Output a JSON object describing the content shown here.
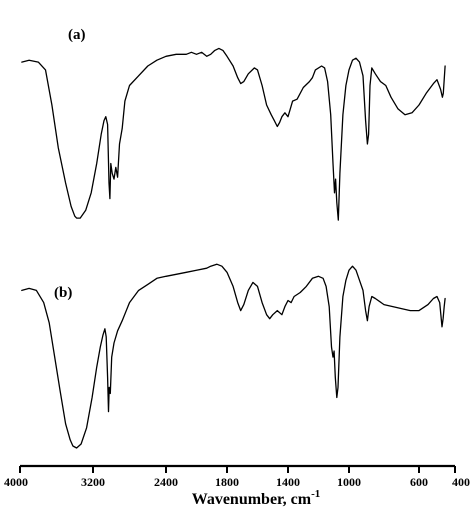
{
  "chart_data": {
    "type": "line",
    "x_reversed": true,
    "xlim": [
      4000,
      400
    ],
    "xlabel": "Wavenumber, cm",
    "xlabel_superscript": "-1",
    "x_ticks": [
      4000,
      3200,
      2400,
      1800,
      1400,
      1000,
      600,
      400
    ],
    "y_axis_shown": false,
    "grid": false,
    "series": [
      {
        "name": "(a)",
        "points": [
          [
            3980,
            0.82
          ],
          [
            3900,
            0.83
          ],
          [
            3800,
            0.82
          ],
          [
            3720,
            0.78
          ],
          [
            3650,
            0.6
          ],
          [
            3580,
            0.38
          ],
          [
            3500,
            0.2
          ],
          [
            3440,
            0.08
          ],
          [
            3400,
            0.03
          ],
          [
            3380,
            0.02
          ],
          [
            3340,
            0.02
          ],
          [
            3280,
            0.06
          ],
          [
            3220,
            0.15
          ],
          [
            3160,
            0.3
          ],
          [
            3110,
            0.45
          ],
          [
            3080,
            0.52
          ],
          [
            3060,
            0.54
          ],
          [
            3040,
            0.5
          ],
          [
            3025,
            0.2
          ],
          [
            3015,
            0.12
          ],
          [
            3005,
            0.3
          ],
          [
            2990,
            0.25
          ],
          [
            2970,
            0.22
          ],
          [
            2950,
            0.28
          ],
          [
            2930,
            0.23
          ],
          [
            2910,
            0.4
          ],
          [
            2880,
            0.48
          ],
          [
            2850,
            0.62
          ],
          [
            2800,
            0.7
          ],
          [
            2700,
            0.75
          ],
          [
            2600,
            0.8
          ],
          [
            2500,
            0.83
          ],
          [
            2400,
            0.85
          ],
          [
            2300,
            0.86
          ],
          [
            2200,
            0.86
          ],
          [
            2150,
            0.87
          ],
          [
            2100,
            0.86
          ],
          [
            2050,
            0.87
          ],
          [
            2000,
            0.85
          ],
          [
            1960,
            0.86
          ],
          [
            1920,
            0.88
          ],
          [
            1880,
            0.89
          ],
          [
            1840,
            0.88
          ],
          [
            1800,
            0.85
          ],
          [
            1760,
            0.8
          ],
          [
            1730,
            0.74
          ],
          [
            1710,
            0.71
          ],
          [
            1690,
            0.72
          ],
          [
            1660,
            0.76
          ],
          [
            1620,
            0.79
          ],
          [
            1600,
            0.78
          ],
          [
            1570,
            0.7
          ],
          [
            1540,
            0.6
          ],
          [
            1510,
            0.55
          ],
          [
            1490,
            0.52
          ],
          [
            1470,
            0.49
          ],
          [
            1455,
            0.51
          ],
          [
            1440,
            0.54
          ],
          [
            1420,
            0.56
          ],
          [
            1400,
            0.54
          ],
          [
            1385,
            0.58
          ],
          [
            1370,
            0.62
          ],
          [
            1340,
            0.63
          ],
          [
            1300,
            0.69
          ],
          [
            1260,
            0.72
          ],
          [
            1240,
            0.74
          ],
          [
            1220,
            0.78
          ],
          [
            1180,
            0.8
          ],
          [
            1160,
            0.79
          ],
          [
            1140,
            0.72
          ],
          [
            1120,
            0.55
          ],
          [
            1105,
            0.3
          ],
          [
            1095,
            0.15
          ],
          [
            1088,
            0.22
          ],
          [
            1080,
            0.1
          ],
          [
            1070,
            0.01
          ],
          [
            1060,
            0.25
          ],
          [
            1040,
            0.55
          ],
          [
            1020,
            0.7
          ],
          [
            1000,
            0.78
          ],
          [
            980,
            0.83
          ],
          [
            960,
            0.84
          ],
          [
            940,
            0.82
          ],
          [
            920,
            0.75
          ],
          [
            905,
            0.52
          ],
          [
            895,
            0.4
          ],
          [
            888,
            0.45
          ],
          [
            880,
            0.7
          ],
          [
            870,
            0.79
          ],
          [
            850,
            0.76
          ],
          [
            820,
            0.72
          ],
          [
            790,
            0.7
          ],
          [
            760,
            0.64
          ],
          [
            720,
            0.58
          ],
          [
            680,
            0.55
          ],
          [
            640,
            0.56
          ],
          [
            600,
            0.6
          ],
          [
            560,
            0.66
          ],
          [
            520,
            0.71
          ],
          [
            500,
            0.73
          ],
          [
            480,
            0.68
          ],
          [
            470,
            0.64
          ],
          [
            465,
            0.66
          ],
          [
            460,
            0.73
          ],
          [
            455,
            0.8
          ]
        ]
      },
      {
        "name": "(b)",
        "points": [
          [
            3980,
            0.78
          ],
          [
            3900,
            0.79
          ],
          [
            3820,
            0.78
          ],
          [
            3740,
            0.72
          ],
          [
            3680,
            0.62
          ],
          [
            3620,
            0.45
          ],
          [
            3560,
            0.28
          ],
          [
            3500,
            0.12
          ],
          [
            3450,
            0.04
          ],
          [
            3420,
            0.01
          ],
          [
            3380,
            0.0
          ],
          [
            3330,
            0.02
          ],
          [
            3270,
            0.1
          ],
          [
            3210,
            0.25
          ],
          [
            3160,
            0.4
          ],
          [
            3120,
            0.5
          ],
          [
            3090,
            0.56
          ],
          [
            3070,
            0.59
          ],
          [
            3055,
            0.55
          ],
          [
            3040,
            0.35
          ],
          [
            3030,
            0.18
          ],
          [
            3022,
            0.3
          ],
          [
            3010,
            0.27
          ],
          [
            2995,
            0.45
          ],
          [
            2970,
            0.52
          ],
          [
            2930,
            0.58
          ],
          [
            2880,
            0.63
          ],
          [
            2800,
            0.72
          ],
          [
            2700,
            0.78
          ],
          [
            2600,
            0.81
          ],
          [
            2500,
            0.84
          ],
          [
            2400,
            0.85
          ],
          [
            2300,
            0.86
          ],
          [
            2200,
            0.87
          ],
          [
            2100,
            0.88
          ],
          [
            2000,
            0.89
          ],
          [
            1960,
            0.9
          ],
          [
            1900,
            0.91
          ],
          [
            1850,
            0.9
          ],
          [
            1800,
            0.87
          ],
          [
            1760,
            0.8
          ],
          [
            1730,
            0.72
          ],
          [
            1710,
            0.68
          ],
          [
            1690,
            0.71
          ],
          [
            1660,
            0.78
          ],
          [
            1630,
            0.82
          ],
          [
            1600,
            0.8
          ],
          [
            1570,
            0.72
          ],
          [
            1540,
            0.66
          ],
          [
            1520,
            0.64
          ],
          [
            1500,
            0.66
          ],
          [
            1470,
            0.68
          ],
          [
            1440,
            0.66
          ],
          [
            1420,
            0.7
          ],
          [
            1400,
            0.73
          ],
          [
            1380,
            0.72
          ],
          [
            1360,
            0.75
          ],
          [
            1320,
            0.77
          ],
          [
            1280,
            0.8
          ],
          [
            1240,
            0.84
          ],
          [
            1200,
            0.85
          ],
          [
            1170,
            0.84
          ],
          [
            1150,
            0.8
          ],
          [
            1130,
            0.7
          ],
          [
            1115,
            0.5
          ],
          [
            1105,
            0.45
          ],
          [
            1098,
            0.48
          ],
          [
            1090,
            0.35
          ],
          [
            1080,
            0.25
          ],
          [
            1072,
            0.3
          ],
          [
            1060,
            0.55
          ],
          [
            1040,
            0.75
          ],
          [
            1020,
            0.83
          ],
          [
            1000,
            0.88
          ],
          [
            980,
            0.9
          ],
          [
            960,
            0.88
          ],
          [
            940,
            0.83
          ],
          [
            920,
            0.78
          ],
          [
            905,
            0.68
          ],
          [
            895,
            0.63
          ],
          [
            885,
            0.7
          ],
          [
            870,
            0.75
          ],
          [
            850,
            0.74
          ],
          [
            800,
            0.71
          ],
          [
            750,
            0.7
          ],
          [
            700,
            0.69
          ],
          [
            650,
            0.68
          ],
          [
            600,
            0.68
          ],
          [
            550,
            0.71
          ],
          [
            520,
            0.74
          ],
          [
            500,
            0.75
          ],
          [
            485,
            0.72
          ],
          [
            472,
            0.6
          ],
          [
            466,
            0.64
          ],
          [
            460,
            0.7
          ],
          [
            455,
            0.74
          ]
        ]
      }
    ]
  }
}
